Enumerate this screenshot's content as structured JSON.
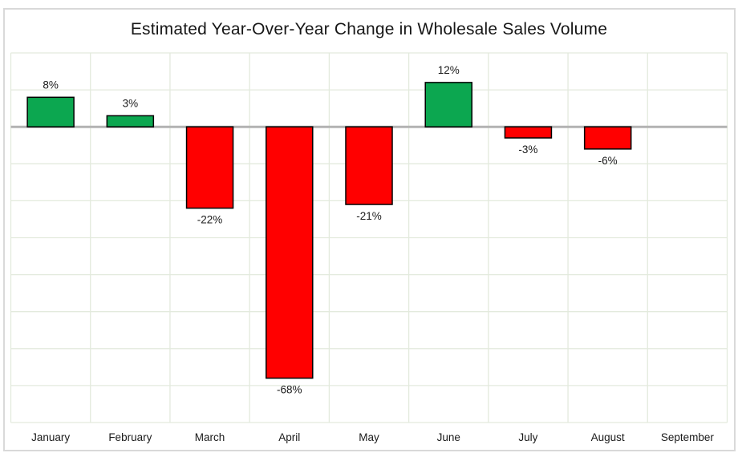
{
  "chart_data": {
    "type": "bar",
    "title": "Estimated Year-Over-Year Change in Wholesale Sales Volume",
    "categories": [
      "January",
      "February",
      "March",
      "April",
      "May",
      "June",
      "July",
      "August",
      "September"
    ],
    "values": [
      8,
      3,
      -22,
      -68,
      -21,
      12,
      -3,
      -6,
      null
    ],
    "labels": [
      "8%",
      "3%",
      "-22%",
      "-68%",
      "-21%",
      "12%",
      "-3%",
      "-6%",
      null
    ],
    "xlabel": "",
    "ylabel": "",
    "unit": "%",
    "ylim": [
      -80,
      20
    ],
    "grid_step": 10,
    "grid": true,
    "legend": false,
    "zero_line": true,
    "colors": {
      "positive": "#0ca750",
      "negative": "#ff0000",
      "bar_border": "#000000",
      "gridline": "#e3eadd",
      "zero_line": "#b3b3b3",
      "frame": "#d9d9d9",
      "text": "#1a1a1a"
    }
  }
}
